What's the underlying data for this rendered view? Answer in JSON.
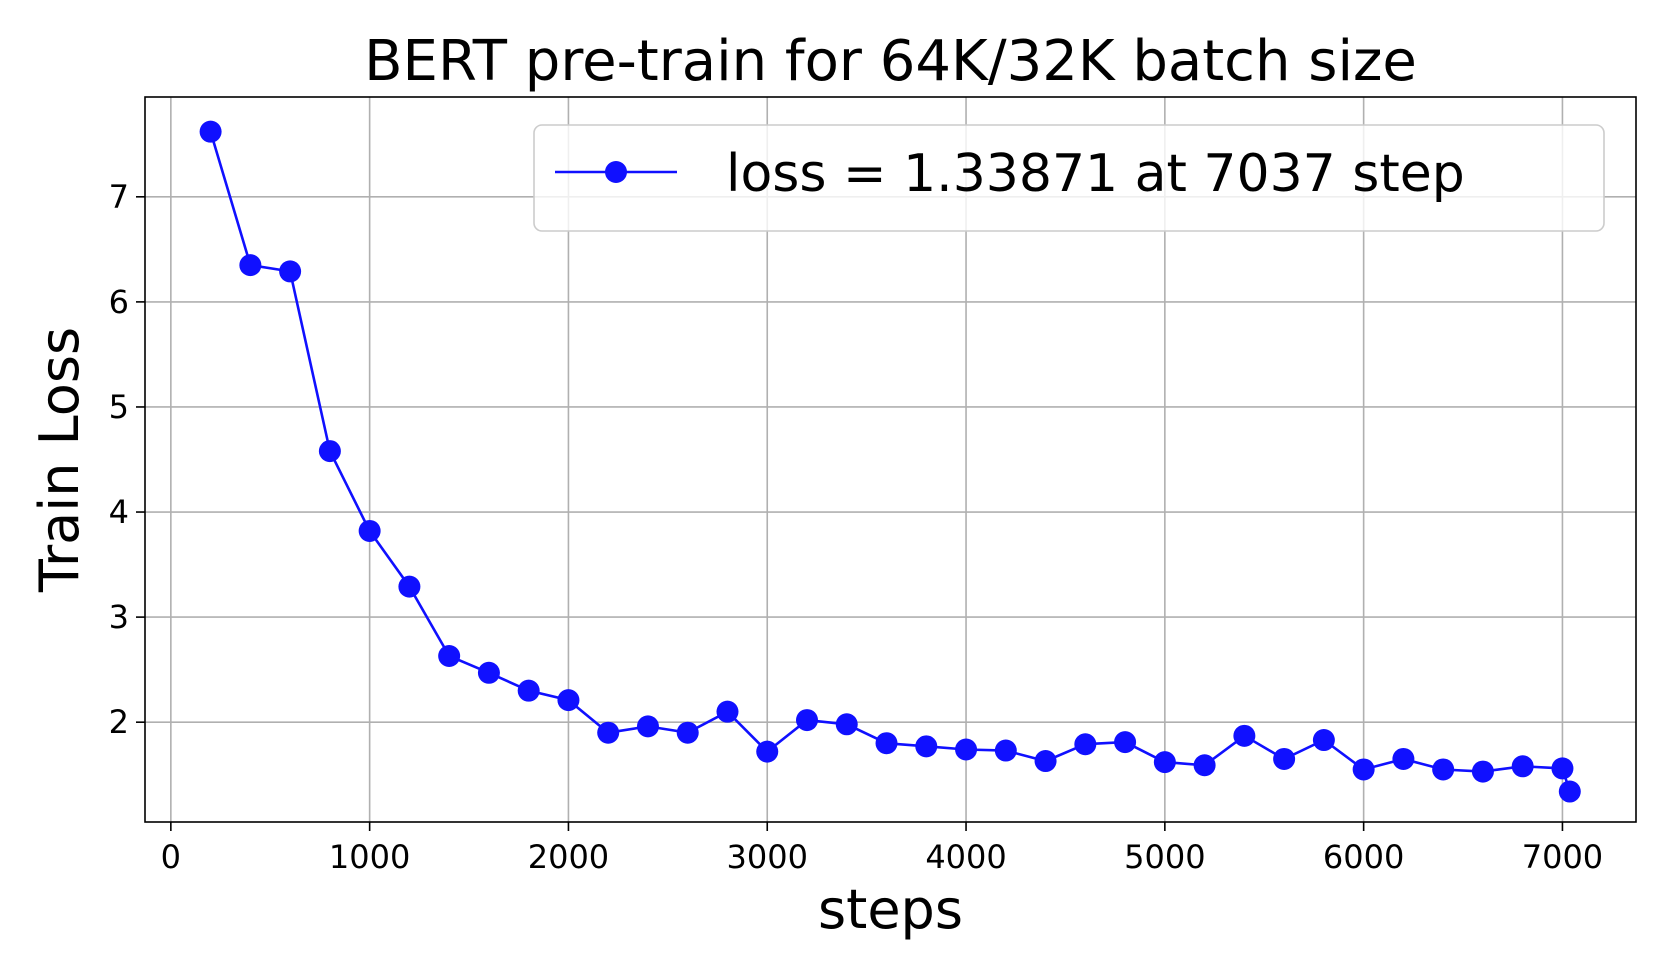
{
  "chart_data": {
    "type": "line",
    "title": "BERT pre-train for 64K/32K batch size",
    "xlabel": "steps",
    "ylabel": "Train Loss",
    "xlim": [
      -130,
      7370
    ],
    "ylim": [
      1.05,
      7.95
    ],
    "xticks": [
      0,
      1000,
      2000,
      3000,
      4000,
      5000,
      6000,
      7000
    ],
    "xtick_labels": [
      "0",
      "1000",
      "2000",
      "3000",
      "4000",
      "5000",
      "6000",
      "7000"
    ],
    "yticks": [
      2,
      3,
      4,
      5,
      6,
      7
    ],
    "ytick_labels": [
      "2",
      "3",
      "4",
      "5",
      "6",
      "7"
    ],
    "grid": true,
    "legend_position": "top-right",
    "series": [
      {
        "name": "loss = 1.33871 at 7037 step",
        "color": "#1010ff",
        "marker": "circle",
        "x": [
          200,
          400,
          600,
          800,
          1000,
          1200,
          1400,
          1600,
          1800,
          2000,
          2200,
          2400,
          2600,
          2800,
          3000,
          3200,
          3400,
          3600,
          3800,
          4000,
          4200,
          4400,
          4600,
          4800,
          5000,
          5200,
          5400,
          5600,
          5800,
          6000,
          6200,
          6400,
          6600,
          6800,
          7000,
          7037
        ],
        "y": [
          7.62,
          6.35,
          6.29,
          4.58,
          3.82,
          3.29,
          2.63,
          2.47,
          2.3,
          2.21,
          1.9,
          1.96,
          1.9,
          2.1,
          1.72,
          2.02,
          1.98,
          1.8,
          1.77,
          1.74,
          1.73,
          1.63,
          1.79,
          1.81,
          1.62,
          1.59,
          1.87,
          1.65,
          1.83,
          1.55,
          1.65,
          1.55,
          1.53,
          1.58,
          1.56,
          1.34
        ]
      }
    ]
  }
}
